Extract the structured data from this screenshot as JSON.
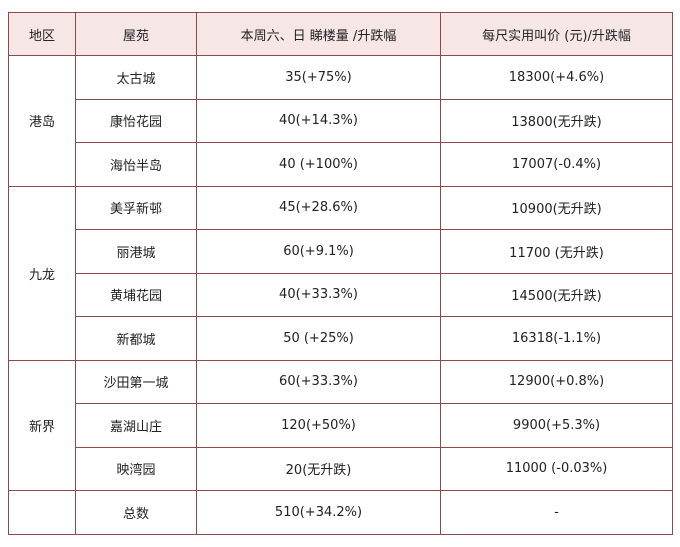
{
  "headers": [
    "地区",
    "屋苑",
    "本周六、日 睇楼量 /升跌幅",
    "每尺实用叫价 (元)/升跌幅"
  ],
  "regions": [
    {
      "name": "港岛",
      "rows": [
        {
          "estate": "太古城",
          "viewings": "35(+75%)",
          "price": "18300(+4.6%)"
        },
        {
          "estate": "康怡花园",
          "viewings": "40(+14.3%)",
          "price": "13800(无升跌)"
        },
        {
          "estate": "海怡半岛",
          "viewings": "40 (+100%)",
          "price": "17007(-0.4%)"
        }
      ]
    },
    {
      "name": "九龙",
      "rows": [
        {
          "estate": "美孚新邨",
          "viewings": "45(+28.6%)",
          "price": "10900(无升跌)"
        },
        {
          "estate": "丽港城",
          "viewings": "60(+9.1%)",
          "price": "11700 (无升跌)"
        },
        {
          "estate": "黄埔花园",
          "viewings": "40(+33.3%)",
          "price": "14500(无升跌)"
        },
        {
          "estate": "新都城",
          "viewings": "50 (+25%)",
          "price": "16318(-1.1%)"
        }
      ]
    },
    {
      "name": "新界",
      "rows": [
        {
          "estate": "沙田第一城",
          "viewings": "60(+33.3%)",
          "price": "12900(+0.8%)"
        },
        {
          "estate": "嘉湖山庄",
          "viewings": "120(+50%)",
          "price": "9900(+5.3%)"
        },
        {
          "estate": "映湾园",
          "viewings": "20(无升跌)",
          "price": "11000 (-0.03%)"
        }
      ]
    }
  ],
  "total": {
    "region": "",
    "estate": "总数",
    "viewings": "510(+34.2%)",
    "price": "-"
  },
  "colors": {
    "border": "#8e4a4a",
    "header_bg": "#f6e6e6"
  }
}
